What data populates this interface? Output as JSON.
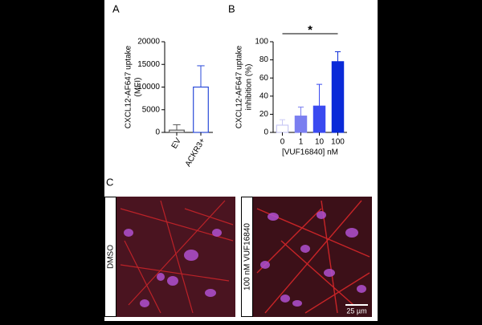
{
  "chart_data": [
    {
      "type": "bar",
      "panel": "A",
      "ylabel": [
        "CXCL12-AF647 uptake",
        "(MFI)"
      ],
      "categories": [
        "EV",
        "ACKR3+"
      ],
      "values": [
        500,
        10000
      ],
      "errors": [
        1200,
        4700
      ],
      "colors": [
        "#555555",
        "#2a4ad8"
      ],
      "ylim": [
        0,
        20000
      ],
      "yticks": [
        0,
        5000,
        10000,
        15000,
        20000
      ]
    },
    {
      "type": "bar",
      "panel": "B",
      "ylabel": [
        "CXCL12-AF647 uptake",
        "inhibition (%)"
      ],
      "xlabel": "[VUF16840] nM",
      "categories": [
        "0",
        "1",
        "10",
        "100"
      ],
      "values": [
        8,
        18,
        29,
        78
      ],
      "errors": [
        6,
        10,
        24,
        11
      ],
      "colors": [
        "#c8c8f4",
        "#7a7ef0",
        "#3a4af0",
        "#0a2ad8"
      ],
      "ylim": [
        0,
        100
      ],
      "yticks": [
        0,
        20,
        40,
        60,
        80,
        100
      ],
      "annotation": "*"
    }
  ],
  "images": {
    "panel": "C",
    "left": "DMSO",
    "right": "100 nM VUF16840",
    "scale": "25 µm"
  }
}
